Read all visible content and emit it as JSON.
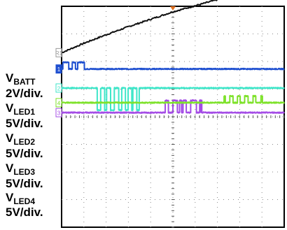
{
  "chart_data": {
    "type": "line",
    "title": "",
    "xlabel": "",
    "ylabel": "",
    "grid": true,
    "grid_divisions": {
      "x": 10,
      "y": 8
    },
    "channel_labels": [
      {
        "name": "V",
        "sub": "BATT",
        "scale": "2V/div."
      },
      {
        "name": "V",
        "sub": "LED1",
        "scale": "5V/div."
      },
      {
        "name": "V",
        "sub": "LED2",
        "scale": "5V/div."
      },
      {
        "name": "V",
        "sub": "LED3",
        "scale": "5V/div."
      },
      {
        "name": "V",
        "sub": "LED4",
        "scale": "5V/div."
      }
    ],
    "series": [
      {
        "name": "VBATT",
        "marker": "R1",
        "color": "#111111",
        "ground_div": 2.32,
        "scale_v_per_div": 2,
        "x_div": [
          0,
          1,
          2,
          3,
          4,
          5,
          6,
          7,
          8,
          9,
          10
        ],
        "y_v": [
          0.0,
          0.68,
          1.3,
          1.88,
          2.42,
          2.96,
          3.4,
          3.84,
          4.22,
          4.56,
          4.84
        ]
      },
      {
        "name": "VLED1",
        "marker": "1",
        "color": "#1e4fd0",
        "ground_div": 1.73,
        "scale_v_per_div": 5,
        "high_v": 1.2,
        "pulses_div": [
          [
            0.05,
            0.32
          ],
          [
            0.47,
            0.62
          ],
          [
            0.72,
            1.02
          ]
        ]
      },
      {
        "name": "VLED2",
        "marker": "2",
        "color": "#3fe6c9",
        "ground_div": 1.04,
        "scale_v_per_div": 5,
        "high_v": -4.0,
        "pulses_div": [
          [
            1.6,
            1.75
          ],
          [
            1.93,
            2.02
          ],
          [
            2.2,
            2.36
          ],
          [
            2.56,
            2.7
          ],
          [
            2.86,
            2.98
          ],
          [
            3.15,
            3.2
          ],
          [
            3.37,
            3.48
          ]
        ]
      },
      {
        "name": "VLED3",
        "marker": "3",
        "color": "#a44ce6",
        "ground_div": 0.15,
        "scale_v_per_div": 5,
        "high_v": 2.2,
        "pulses_div": [
          [
            4.65,
            4.8
          ],
          [
            5.0,
            5.2
          ],
          [
            5.3,
            5.38
          ],
          [
            5.45,
            5.6
          ],
          [
            5.8,
            6.05
          ],
          [
            6.2,
            6.25
          ],
          [
            6.27,
            6.3
          ]
        ]
      },
      {
        "name": "VLED4",
        "marker": "4",
        "color": "#7ee22a",
        "ground_div": 0.51,
        "scale_v_per_div": 5,
        "high_v": 1.2,
        "pulses_div": [
          [
            7.3,
            7.35
          ],
          [
            7.55,
            7.7
          ],
          [
            7.9,
            8.02
          ],
          [
            8.22,
            8.37
          ],
          [
            8.6,
            8.72
          ],
          [
            8.95,
            9.02
          ]
        ]
      }
    ]
  }
}
